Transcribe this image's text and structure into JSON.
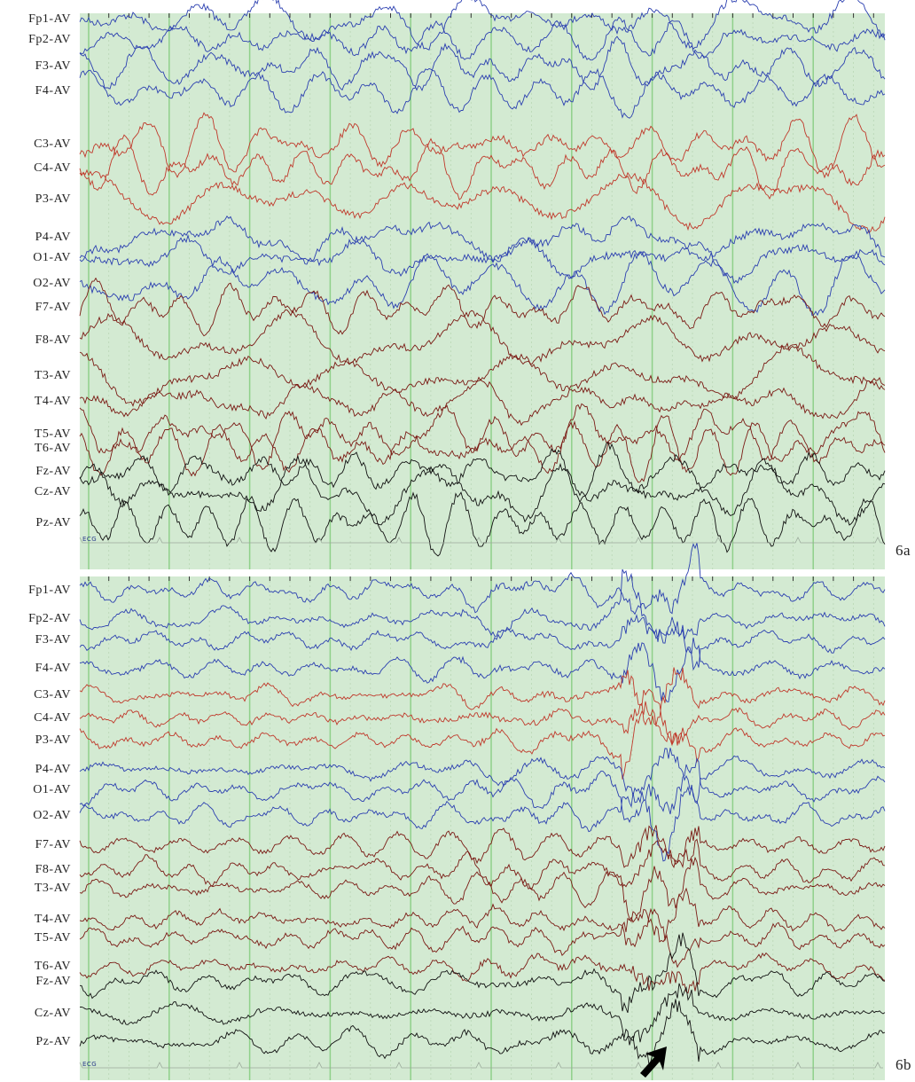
{
  "panels": [
    {
      "label": "6a",
      "ecg_label": "ECG",
      "channels": [
        "Fp1-AV",
        "Fp2-AV",
        "F3-AV",
        "F4-AV",
        "C3-AV",
        "C4-AV",
        "P3-AV",
        "P4-AV",
        "O1-AV",
        "O2-AV",
        "F7-AV",
        "F8-AV",
        "T3-AV",
        "T4-AV",
        "T5-AV",
        "T6-AV",
        "Fz-AV",
        "Cz-AV",
        "Pz-AV"
      ]
    },
    {
      "label": "6b",
      "ecg_label": "ECG",
      "channels": [
        "Fp1-AV",
        "Fp2-AV",
        "F3-AV",
        "F4-AV",
        "C3-AV",
        "C4-AV",
        "P3-AV",
        "P4-AV",
        "O1-AV",
        "O2-AV",
        "F7-AV",
        "F8-AV",
        "T3-AV",
        "T4-AV",
        "T5-AV",
        "T6-AV",
        "Fz-AV",
        "Cz-AV",
        "Pz-AV"
      ]
    }
  ]
}
